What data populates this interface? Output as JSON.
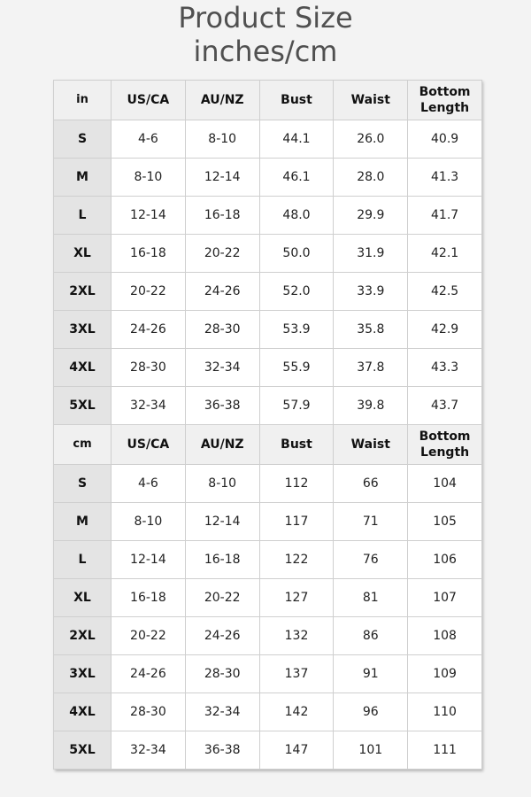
{
  "title": {
    "line1": "Product Size",
    "line2": "inches/cm"
  },
  "columns": [
    "US/CA",
    "AU/NZ",
    "Bust",
    "Waist",
    "Bottom Length"
  ],
  "tables": [
    {
      "unit": "in",
      "rows": [
        [
          "S",
          "4-6",
          "8-10",
          "44.1",
          "26.0",
          "40.9"
        ],
        [
          "M",
          "8-10",
          "12-14",
          "46.1",
          "28.0",
          "41.3"
        ],
        [
          "L",
          "12-14",
          "16-18",
          "48.0",
          "29.9",
          "41.7"
        ],
        [
          "XL",
          "16-18",
          "20-22",
          "50.0",
          "31.9",
          "42.1"
        ],
        [
          "2XL",
          "20-22",
          "24-26",
          "52.0",
          "33.9",
          "42.5"
        ],
        [
          "3XL",
          "24-26",
          "28-30",
          "53.9",
          "35.8",
          "42.9"
        ],
        [
          "4XL",
          "28-30",
          "32-34",
          "55.9",
          "37.8",
          "43.3"
        ],
        [
          "5XL",
          "32-34",
          "36-38",
          "57.9",
          "39.8",
          "43.7"
        ]
      ]
    },
    {
      "unit": "cm",
      "rows": [
        [
          "S",
          "4-6",
          "8-10",
          "112",
          "66",
          "104"
        ],
        [
          "M",
          "8-10",
          "12-14",
          "117",
          "71",
          "105"
        ],
        [
          "L",
          "12-14",
          "16-18",
          "122",
          "76",
          "106"
        ],
        [
          "XL",
          "16-18",
          "20-22",
          "127",
          "81",
          "107"
        ],
        [
          "2XL",
          "20-22",
          "24-26",
          "132",
          "86",
          "108"
        ],
        [
          "3XL",
          "24-26",
          "28-30",
          "137",
          "91",
          "109"
        ],
        [
          "4XL",
          "28-30",
          "32-34",
          "142",
          "96",
          "110"
        ],
        [
          "5XL",
          "32-34",
          "36-38",
          "147",
          "101",
          "111"
        ]
      ]
    }
  ]
}
